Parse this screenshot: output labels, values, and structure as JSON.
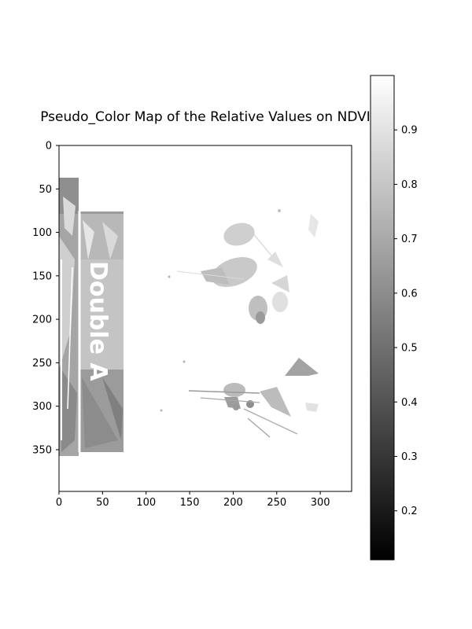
{
  "chart_data": {
    "type": "heatmap",
    "title": "Pseudo_Color Map of the Relative Values on NDVI",
    "xlabel": "",
    "ylabel": "",
    "colormap": "gray",
    "x_ticks": [
      0,
      50,
      100,
      150,
      200,
      250,
      300
    ],
    "y_ticks": [
      0,
      50,
      100,
      150,
      200,
      250,
      300,
      350
    ],
    "xlim": [
      0,
      336
    ],
    "ylim": [
      398,
      0
    ],
    "colorbar": {
      "range": [
        0.11,
        1.0
      ],
      "ticks": [
        "0.2",
        "0.3",
        "0.4",
        "0.5",
        "0.6",
        "0.7",
        "0.8",
        "0.9"
      ]
    },
    "image_text": "Double A"
  }
}
